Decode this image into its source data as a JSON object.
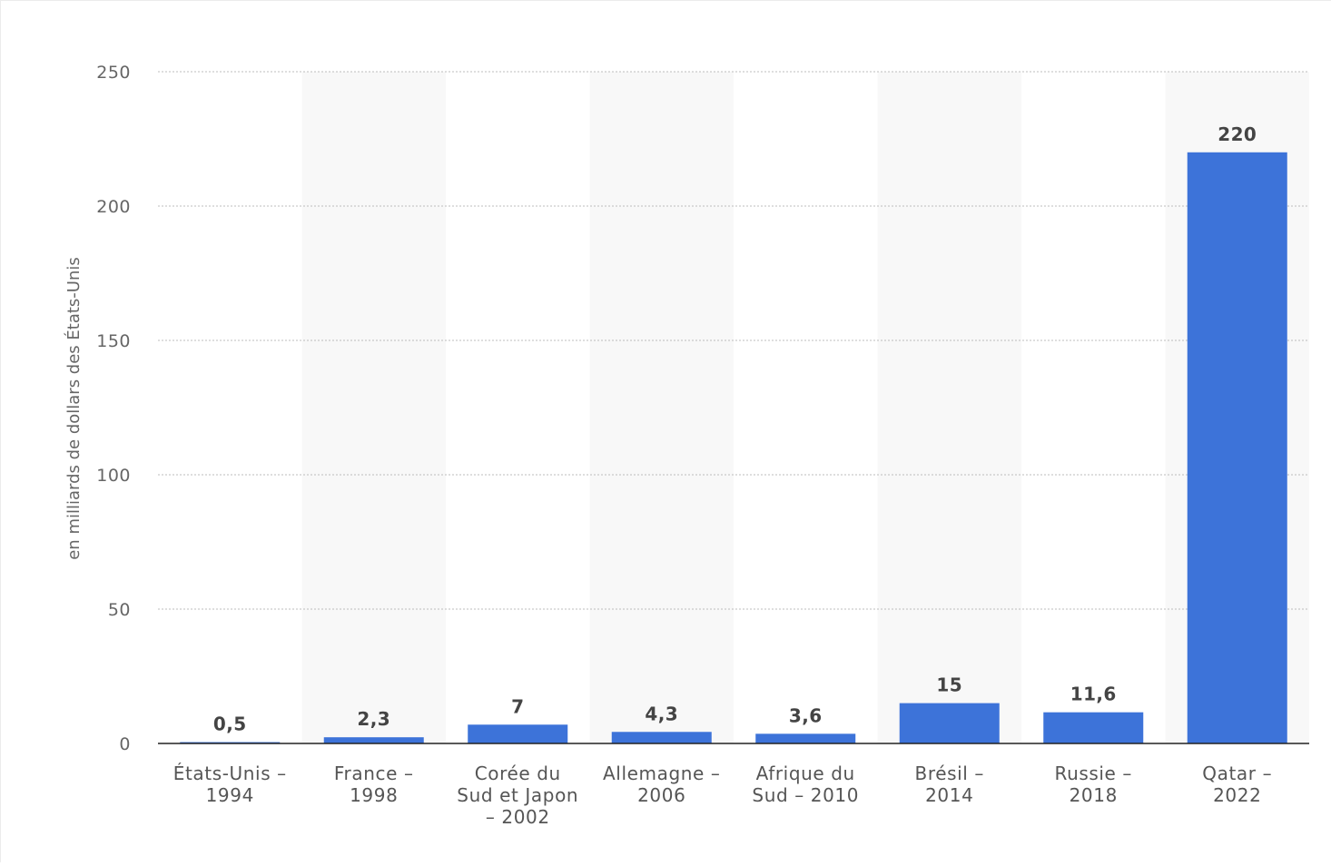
{
  "chart_data": {
    "type": "bar",
    "categories": [
      [
        "États-Unis –",
        "1994"
      ],
      [
        "France –",
        "1998"
      ],
      [
        "Corée du",
        "Sud et Japon",
        "– 2002"
      ],
      [
        "Allemagne –",
        "2006"
      ],
      [
        "Afrique du",
        "Sud – 2010"
      ],
      [
        "Brésil –",
        "2014"
      ],
      [
        "Russie –",
        "2018"
      ],
      [
        "Qatar –",
        "2022"
      ]
    ],
    "values": [
      0.5,
      2.3,
      7,
      4.3,
      3.6,
      15,
      11.6,
      220
    ],
    "value_labels": [
      "0,5",
      "2,3",
      "7",
      "4,3",
      "3,6",
      "15",
      "11,6",
      "220"
    ],
    "ylabel": "en milliards de dollars des États-Unis",
    "xlabel": "",
    "ylim": [
      0,
      250
    ],
    "yticks": [
      0,
      50,
      100,
      150,
      200,
      250
    ],
    "grid": true,
    "alternating_bands": true,
    "colors": {
      "bar": "#3d73d9",
      "band": "#f8f8f8",
      "grid": "#bdbdbd",
      "axis": "#222222"
    }
  }
}
